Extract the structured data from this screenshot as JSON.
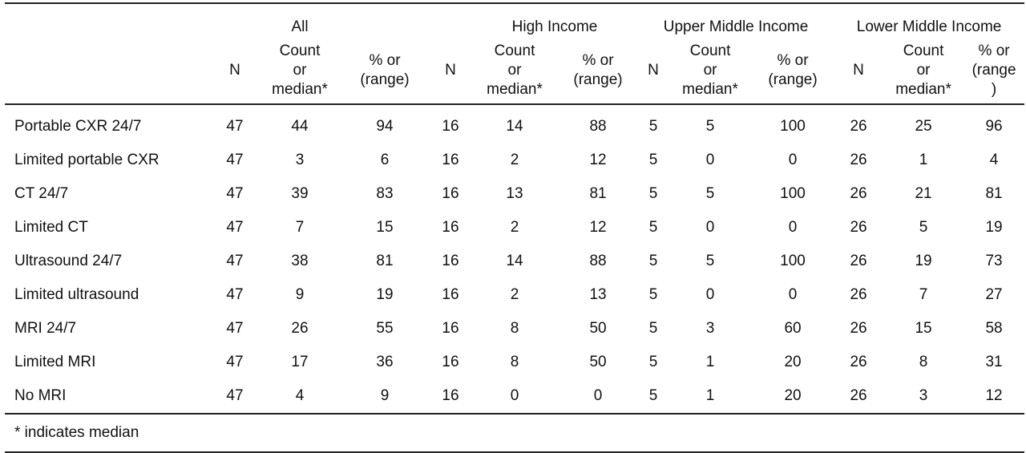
{
  "groups": [
    "All",
    "High Income",
    "Upper Middle Income",
    "Lower Middle Income"
  ],
  "subheaders": {
    "n": "N",
    "count": "Count\nor\nmedian*",
    "pct": "% or\n(range)",
    "pct_last": "% or\n(range\n)"
  },
  "rows": [
    {
      "label": "Portable CXR 24/7",
      "cells": [
        "47",
        "44",
        "94",
        "16",
        "14",
        "88",
        "5",
        "5",
        "100",
        "26",
        "25",
        "96"
      ]
    },
    {
      "label": "Limited portable CXR",
      "cells": [
        "47",
        "3",
        "6",
        "16",
        "2",
        "12",
        "5",
        "0",
        "0",
        "26",
        "1",
        "4"
      ]
    },
    {
      "label": "CT 24/7",
      "cells": [
        "47",
        "39",
        "83",
        "16",
        "13",
        "81",
        "5",
        "5",
        "100",
        "26",
        "21",
        "81"
      ]
    },
    {
      "label": "Limited CT",
      "cells": [
        "47",
        "7",
        "15",
        "16",
        "2",
        "12",
        "5",
        "0",
        "0",
        "26",
        "5",
        "19"
      ]
    },
    {
      "label": "Ultrasound 24/7",
      "cells": [
        "47",
        "38",
        "81",
        "16",
        "14",
        "88",
        "5",
        "5",
        "100",
        "26",
        "19",
        "73"
      ]
    },
    {
      "label": "Limited ultrasound",
      "cells": [
        "47",
        "9",
        "19",
        "16",
        "2",
        "13",
        "5",
        "0",
        "0",
        "26",
        "7",
        "27"
      ]
    },
    {
      "label": "MRI 24/7",
      "cells": [
        "47",
        "26",
        "55",
        "16",
        "8",
        "50",
        "5",
        "3",
        "60",
        "26",
        "15",
        "58"
      ]
    },
    {
      "label": "Limited MRI",
      "cells": [
        "47",
        "17",
        "36",
        "16",
        "8",
        "50",
        "5",
        "1",
        "20",
        "26",
        "8",
        "31"
      ]
    },
    {
      "label": "No MRI",
      "cells": [
        "47",
        "4",
        "9",
        "16",
        "0",
        "0",
        "5",
        "1",
        "20",
        "26",
        "3",
        "12"
      ]
    }
  ],
  "footnote": "* indicates median"
}
